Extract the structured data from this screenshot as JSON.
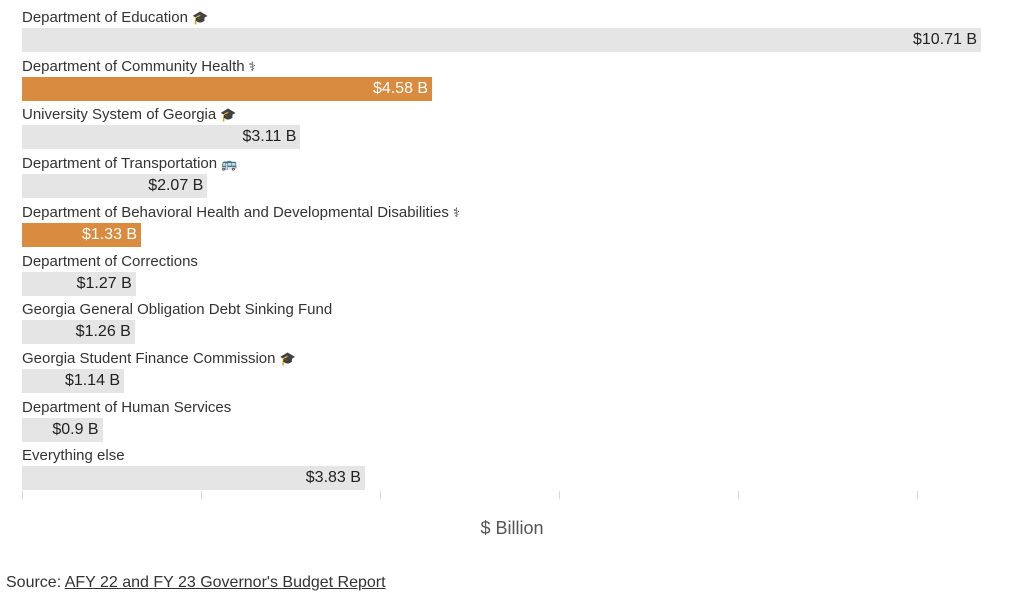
{
  "chart_data": {
    "type": "bar",
    "orientation": "horizontal",
    "xlabel": "$ Billion",
    "xlim": [
      0,
      10.71
    ],
    "value_suffix": " B",
    "value_prefix": "$",
    "highlight_color": "#d98b3f",
    "base_color": "#e5e5e5",
    "categories": [
      {
        "label": "Department of Education",
        "icon": "graduation-cap-icon",
        "glyph": "🎓",
        "value": 10.71,
        "value_label": "$10.71 B",
        "highlight": false
      },
      {
        "label": "Department of Community Health",
        "icon": "medical-staff-icon",
        "glyph": "⚕",
        "value": 4.58,
        "value_label": "$4.58 B",
        "highlight": true
      },
      {
        "label": "University System of Georgia",
        "icon": "graduation-cap-icon",
        "glyph": "🎓",
        "value": 3.11,
        "value_label": "$3.11 B",
        "highlight": false
      },
      {
        "label": "Department of Transportation",
        "icon": "bus-icon",
        "glyph": "🚌",
        "value": 2.07,
        "value_label": "$2.07 B",
        "highlight": false
      },
      {
        "label": "Department of Behavioral Health and Developmental Disabilities",
        "icon": "medical-staff-icon",
        "glyph": "⚕",
        "value": 1.33,
        "value_label": "$1.33 B",
        "highlight": true
      },
      {
        "label": "Department of Corrections",
        "icon": "",
        "glyph": "",
        "value": 1.27,
        "value_label": "$1.27 B",
        "highlight": false
      },
      {
        "label": "Georgia General Obligation Debt Sinking Fund",
        "icon": "",
        "glyph": "",
        "value": 1.26,
        "value_label": "$1.26 B",
        "highlight": false
      },
      {
        "label": "Georgia Student Finance Commission",
        "icon": "graduation-cap-icon",
        "glyph": "🎓",
        "value": 1.14,
        "value_label": "$1.14 B",
        "highlight": false
      },
      {
        "label": "Department of Human Services",
        "icon": "",
        "glyph": "",
        "value": 0.9,
        "value_label": "$0.9 B",
        "highlight": false
      },
      {
        "label": "Everything else",
        "icon": "",
        "glyph": "",
        "value": 3.83,
        "value_label": "$3.83 B",
        "highlight": false
      }
    ],
    "ticks": [
      0,
      2,
      4,
      6,
      8,
      10
    ]
  },
  "source": {
    "prefix": "Source: ",
    "link_text": "AFY 22 and FY 23 Governor's Budget Report"
  }
}
